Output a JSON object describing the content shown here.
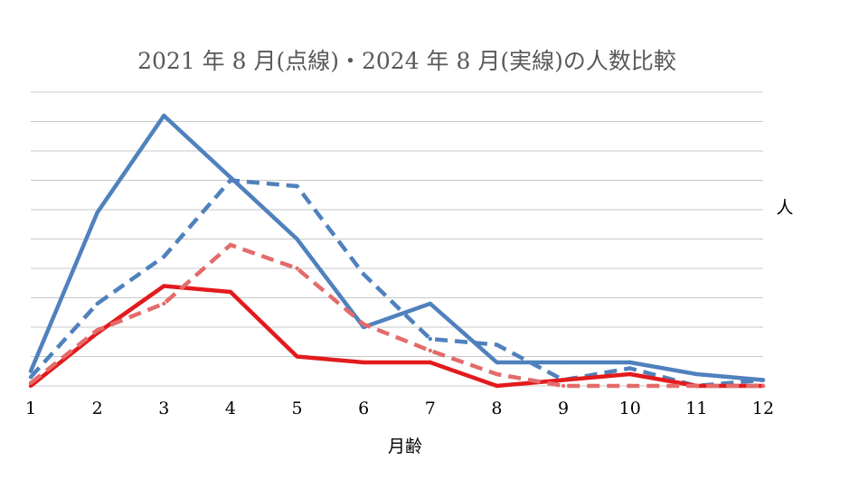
{
  "chart_data": {
    "type": "line",
    "title": "2021 年 8 月(点線)・2024 年 8 月(実線)の人数比較",
    "xlabel": "月齢",
    "ylabel": "人",
    "x": [
      "1",
      "2",
      "3",
      "4",
      "5",
      "6",
      "7",
      "8",
      "9",
      "10",
      "11",
      "12"
    ],
    "ylim": [
      0,
      10
    ],
    "y_gridlines": [
      0,
      1,
      2,
      3,
      4,
      5,
      6,
      7,
      8,
      9,
      10
    ],
    "y_tick_labels_shown": false,
    "grid": true,
    "legend": "none",
    "series": [
      {
        "style": "solid",
        "year_group": "2024-08",
        "color": "#4F81BD",
        "values": [
          0.5,
          5.9,
          9.2,
          7.1,
          5.0,
          2.0,
          2.8,
          0.8,
          0.8,
          0.8,
          0.4,
          0.2
        ]
      },
      {
        "style": "dashed",
        "year_group": "2021-08",
        "color": "#4F81BD",
        "values": [
          0.3,
          2.8,
          4.4,
          7.0,
          6.8,
          3.8,
          1.6,
          1.4,
          0.2,
          0.6,
          0.0,
          0.2
        ]
      },
      {
        "style": "solid",
        "year_group": "2024-08",
        "color": "#E31A1C",
        "values": [
          0.0,
          1.8,
          3.4,
          3.2,
          1.0,
          0.8,
          0.8,
          0.0,
          0.2,
          0.4,
          0.0,
          0.0
        ]
      },
      {
        "style": "dashed",
        "year_group": "2021-08",
        "color": "#E46B6B",
        "values": [
          0.1,
          1.9,
          2.8,
          4.8,
          4.0,
          2.1,
          1.2,
          0.4,
          0.0,
          0.0,
          0.0,
          0.0
        ]
      }
    ]
  }
}
